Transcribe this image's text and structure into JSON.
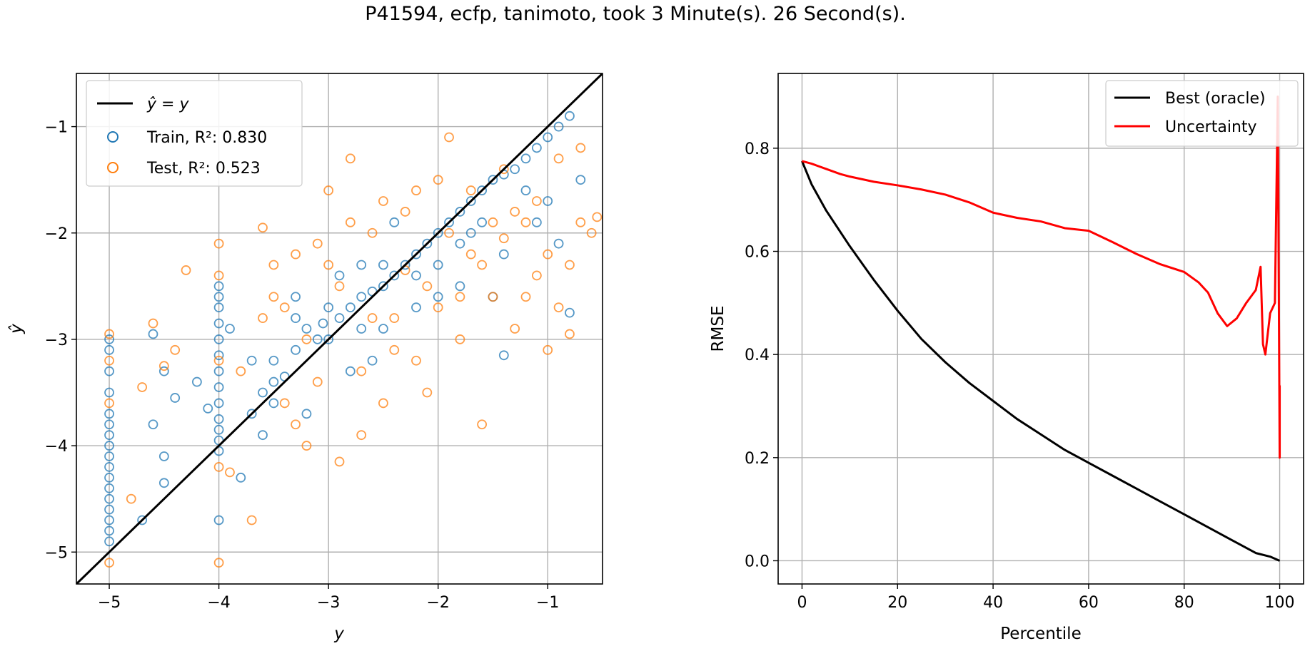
{
  "suptitle": "P41594, ecfp, tanimoto, took 3 Minute(s). 26 Second(s).",
  "colors": {
    "train": "#1f77b4",
    "test": "#ff7f0e",
    "oracle": "#000000",
    "uncertainty": "#ff0000",
    "identity": "#000000",
    "grid": "#b0b0b0"
  },
  "chart_data": [
    {
      "type": "scatter",
      "xlabel": "y",
      "ylabel": "ŷ",
      "xlim": [
        -5.3,
        -0.5
      ],
      "ylim": [
        -5.3,
        -0.5
      ],
      "xticks": [
        -5,
        -4,
        -3,
        -2,
        -1
      ],
      "yticks": [
        -5,
        -4,
        -3,
        -2,
        -1
      ],
      "tick_labels": [
        "−5",
        "−4",
        "−3",
        "−2",
        "−1"
      ],
      "grid": true,
      "legend_position": "upper-left",
      "legend": {
        "identity_label": "ŷ = y",
        "train_label": "Train, R²: 0.830",
        "test_label": "Test,  R²: 0.523"
      },
      "identity_line": [
        [
          -5.3,
          -5.3
        ],
        [
          -0.5,
          -0.5
        ]
      ],
      "series": [
        {
          "name": "Train",
          "r2": 0.83,
          "marker": "open-circle",
          "points": [
            [
              -5.0,
              -4.9
            ],
            [
              -5.0,
              -4.8
            ],
            [
              -5.0,
              -4.7
            ],
            [
              -5.0,
              -4.6
            ],
            [
              -5.0,
              -4.5
            ],
            [
              -5.0,
              -4.4
            ],
            [
              -5.0,
              -4.3
            ],
            [
              -5.0,
              -4.2
            ],
            [
              -5.0,
              -4.1
            ],
            [
              -5.0,
              -4.0
            ],
            [
              -5.0,
              -3.9
            ],
            [
              -5.0,
              -3.8
            ],
            [
              -5.0,
              -3.7
            ],
            [
              -5.0,
              -3.5
            ],
            [
              -5.0,
              -3.3
            ],
            [
              -5.0,
              -3.1
            ],
            [
              -5.0,
              -3.0
            ],
            [
              -4.7,
              -4.7
            ],
            [
              -4.5,
              -4.35
            ],
            [
              -4.5,
              -4.1
            ],
            [
              -4.6,
              -3.8
            ],
            [
              -4.4,
              -3.55
            ],
            [
              -4.2,
              -3.4
            ],
            [
              -4.6,
              -2.95
            ],
            [
              -4.5,
              -3.3
            ],
            [
              -4.1,
              -3.65
            ],
            [
              -4.0,
              -4.7
            ],
            [
              -4.0,
              -4.05
            ],
            [
              -4.0,
              -3.95
            ],
            [
              -4.0,
              -3.85
            ],
            [
              -4.0,
              -3.75
            ],
            [
              -4.0,
              -3.6
            ],
            [
              -4.0,
              -3.45
            ],
            [
              -4.0,
              -3.3
            ],
            [
              -4.0,
              -3.15
            ],
            [
              -4.0,
              -3.0
            ],
            [
              -4.0,
              -2.85
            ],
            [
              -4.0,
              -2.7
            ],
            [
              -4.0,
              -2.6
            ],
            [
              -4.0,
              -2.5
            ],
            [
              -3.8,
              -4.3
            ],
            [
              -3.7,
              -3.7
            ],
            [
              -3.6,
              -3.5
            ],
            [
              -3.9,
              -2.9
            ],
            [
              -3.7,
              -3.2
            ],
            [
              -3.5,
              -3.6
            ],
            [
              -3.5,
              -3.4
            ],
            [
              -3.5,
              -3.2
            ],
            [
              -3.4,
              -3.35
            ],
            [
              -3.3,
              -3.1
            ],
            [
              -3.3,
              -2.8
            ],
            [
              -3.2,
              -2.9
            ],
            [
              -3.1,
              -3.0
            ],
            [
              -3.05,
              -2.85
            ],
            [
              -3.0,
              -3.0
            ],
            [
              -3.0,
              -2.7
            ],
            [
              -2.9,
              -2.8
            ],
            [
              -2.8,
              -2.7
            ],
            [
              -2.7,
              -2.6
            ],
            [
              -2.7,
              -2.9
            ],
            [
              -2.6,
              -2.55
            ],
            [
              -2.5,
              -2.5
            ],
            [
              -2.5,
              -2.3
            ],
            [
              -2.4,
              -2.4
            ],
            [
              -2.3,
              -2.3
            ],
            [
              -2.2,
              -2.2
            ],
            [
              -2.2,
              -2.4
            ],
            [
              -2.1,
              -2.1
            ],
            [
              -2.0,
              -2.0
            ],
            [
              -2.0,
              -2.3
            ],
            [
              -1.9,
              -1.9
            ],
            [
              -1.8,
              -1.8
            ],
            [
              -1.8,
              -2.1
            ],
            [
              -1.7,
              -1.7
            ],
            [
              -1.6,
              -1.6
            ],
            [
              -1.6,
              -1.9
            ],
            [
              -1.5,
              -1.5
            ],
            [
              -1.4,
              -1.45
            ],
            [
              -1.3,
              -1.4
            ],
            [
              -1.2,
              -1.3
            ],
            [
              -1.1,
              -1.2
            ],
            [
              -1.0,
              -1.1
            ],
            [
              -0.9,
              -1.0
            ],
            [
              -0.8,
              -0.9
            ],
            [
              -2.8,
              -3.3
            ],
            [
              -2.5,
              -2.9
            ],
            [
              -2.2,
              -2.7
            ],
            [
              -1.8,
              -2.5
            ],
            [
              -1.4,
              -2.2
            ],
            [
              -1.0,
              -1.7
            ],
            [
              -0.7,
              -1.5
            ],
            [
              -1.4,
              -3.15
            ],
            [
              -0.8,
              -2.75
            ],
            [
              -2.9,
              -2.4
            ],
            [
              -2.4,
              -1.9
            ],
            [
              -1.2,
              -1.6
            ],
            [
              -0.9,
              -2.1
            ],
            [
              -3.6,
              -3.9
            ],
            [
              -3.2,
              -3.7
            ],
            [
              -2.6,
              -3.2
            ],
            [
              -2.0,
              -2.6
            ],
            [
              -1.5,
              -2.6
            ],
            [
              -3.3,
              -2.6
            ],
            [
              -2.7,
              -2.3
            ],
            [
              -1.7,
              -2.0
            ],
            [
              -1.1,
              -1.9
            ]
          ]
        },
        {
          "name": "Test",
          "r2": 0.523,
          "marker": "open-circle",
          "points": [
            [
              -5.0,
              -5.1
            ],
            [
              -5.0,
              -3.2
            ],
            [
              -5.0,
              -2.95
            ],
            [
              -5.0,
              -3.6
            ],
            [
              -4.8,
              -4.5
            ],
            [
              -4.7,
              -3.45
            ],
            [
              -4.5,
              -3.25
            ],
            [
              -4.6,
              -2.85
            ],
            [
              -4.3,
              -2.35
            ],
            [
              -4.4,
              -3.1
            ],
            [
              -4.0,
              -5.1
            ],
            [
              -4.0,
              -4.2
            ],
            [
              -4.0,
              -2.1
            ],
            [
              -4.0,
              -2.4
            ],
            [
              -4.0,
              -3.2
            ],
            [
              -3.9,
              -4.25
            ],
            [
              -3.7,
              -4.7
            ],
            [
              -3.6,
              -1.95
            ],
            [
              -3.5,
              -2.3
            ],
            [
              -3.4,
              -2.7
            ],
            [
              -3.3,
              -3.8
            ],
            [
              -3.2,
              -4.0
            ],
            [
              -3.1,
              -2.1
            ],
            [
              -3.0,
              -1.6
            ],
            [
              -2.9,
              -4.15
            ],
            [
              -2.8,
              -1.3
            ],
            [
              -2.7,
              -3.9
            ],
            [
              -2.6,
              -2.0
            ],
            [
              -2.5,
              -3.6
            ],
            [
              -2.4,
              -2.8
            ],
            [
              -2.3,
              -1.8
            ],
            [
              -2.2,
              -3.2
            ],
            [
              -2.1,
              -2.5
            ],
            [
              -2.0,
              -1.5
            ],
            [
              -1.9,
              -1.1
            ],
            [
              -1.8,
              -3.0
            ],
            [
              -1.7,
              -2.2
            ],
            [
              -1.6,
              -3.8
            ],
            [
              -1.5,
              -2.6
            ],
            [
              -1.4,
              -1.4
            ],
            [
              -1.3,
              -2.9
            ],
            [
              -1.2,
              -1.9
            ],
            [
              -1.1,
              -2.4
            ],
            [
              -1.0,
              -3.1
            ],
            [
              -0.9,
              -1.3
            ],
            [
              -0.8,
              -2.95
            ],
            [
              -0.7,
              -1.9
            ],
            [
              -0.6,
              -2.0
            ],
            [
              -0.55,
              -1.85
            ],
            [
              -0.8,
              -2.3
            ],
            [
              -3.8,
              -3.3
            ],
            [
              -3.5,
              -2.6
            ],
            [
              -3.2,
              -3.0
            ],
            [
              -2.9,
              -2.5
            ],
            [
              -2.6,
              -2.8
            ],
            [
              -2.3,
              -2.35
            ],
            [
              -2.0,
              -2.7
            ],
            [
              -1.7,
              -1.6
            ],
            [
              -1.4,
              -2.05
            ],
            [
              -1.1,
              -1.7
            ],
            [
              -3.4,
              -3.6
            ],
            [
              -3.1,
              -3.4
            ],
            [
              -2.7,
              -3.3
            ],
            [
              -2.4,
              -3.1
            ],
            [
              -2.1,
              -3.5
            ],
            [
              -1.8,
              -2.6
            ],
            [
              -1.5,
              -1.9
            ],
            [
              -1.2,
              -2.6
            ],
            [
              -0.9,
              -2.7
            ],
            [
              -0.7,
              -1.2
            ],
            [
              -3.6,
              -2.8
            ],
            [
              -3.3,
              -2.2
            ],
            [
              -3.0,
              -2.3
            ],
            [
              -2.8,
              -1.9
            ],
            [
              -2.5,
              -1.7
            ],
            [
              -2.2,
              -1.6
            ],
            [
              -1.9,
              -2.0
            ],
            [
              -1.6,
              -2.3
            ],
            [
              -1.3,
              -1.8
            ],
            [
              -1.0,
              -2.2
            ]
          ]
        }
      ]
    },
    {
      "type": "line",
      "xlabel": "Percentile",
      "ylabel": "RMSE",
      "xlim": [
        -5,
        105
      ],
      "ylim": [
        -0.045,
        0.945
      ],
      "xticks": [
        0,
        20,
        40,
        60,
        80,
        100
      ],
      "yticks": [
        0.0,
        0.2,
        0.4,
        0.6,
        0.8
      ],
      "ytick_labels": [
        "0.0",
        "0.2",
        "0.4",
        "0.6",
        "0.8"
      ],
      "grid": true,
      "legend_position": "upper-right",
      "series": [
        {
          "name": "Best (oracle)",
          "x": [
            0,
            2,
            5,
            10,
            15,
            20,
            25,
            30,
            35,
            40,
            45,
            50,
            55,
            60,
            65,
            70,
            75,
            80,
            85,
            90,
            95,
            98,
            100
          ],
          "y": [
            0.775,
            0.73,
            0.68,
            0.61,
            0.545,
            0.485,
            0.43,
            0.385,
            0.345,
            0.31,
            0.275,
            0.245,
            0.215,
            0.19,
            0.165,
            0.14,
            0.115,
            0.09,
            0.065,
            0.04,
            0.015,
            0.008,
            0.0
          ]
        },
        {
          "name": "Uncertainty",
          "x": [
            0,
            2,
            5,
            8,
            10,
            15,
            20,
            25,
            30,
            35,
            40,
            45,
            50,
            55,
            60,
            65,
            70,
            75,
            80,
            83,
            85,
            87,
            89,
            91,
            93,
            95,
            96,
            96.5,
            97,
            98,
            99,
            99.3,
            99.6,
            100,
            100
          ],
          "y": [
            0.775,
            0.77,
            0.76,
            0.75,
            0.745,
            0.735,
            0.728,
            0.72,
            0.71,
            0.695,
            0.675,
            0.665,
            0.658,
            0.645,
            0.64,
            0.618,
            0.595,
            0.575,
            0.56,
            0.54,
            0.52,
            0.48,
            0.455,
            0.47,
            0.5,
            0.525,
            0.57,
            0.42,
            0.4,
            0.48,
            0.5,
            0.7,
            0.9,
            0.2,
            0.34
          ]
        }
      ]
    }
  ]
}
